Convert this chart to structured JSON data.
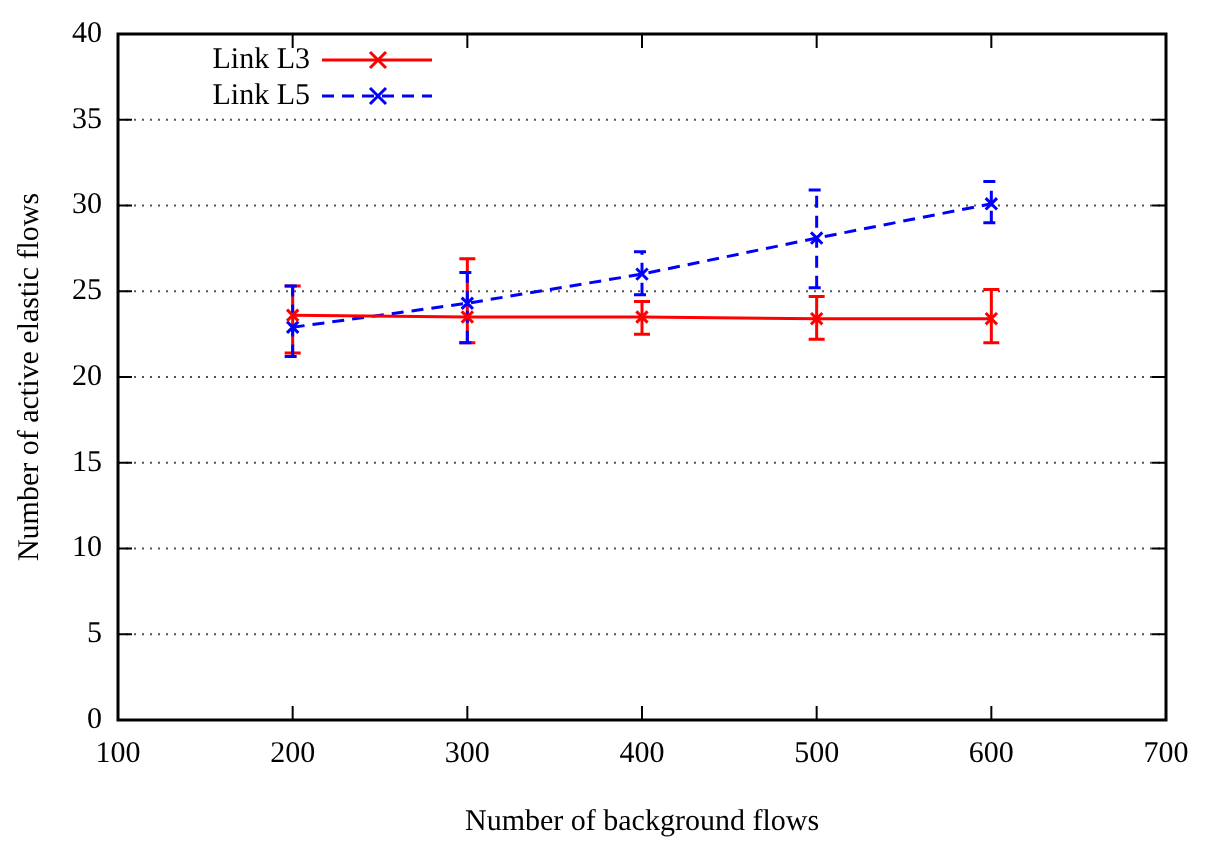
{
  "chart_data": {
    "type": "line",
    "xlabel": "Number of background flows",
    "ylabel": "Number of active elastic flows",
    "x": [
      200,
      300,
      400,
      500,
      600
    ],
    "series": [
      {
        "name": "Link L3",
        "color": "#ff0000",
        "line_style": "solid",
        "marker": "cross",
        "values": [
          23.6,
          23.5,
          23.5,
          23.4,
          23.4
        ],
        "errors": [
          [
            21.4,
            25.3
          ],
          [
            22.0,
            26.9
          ],
          [
            22.5,
            24.4
          ],
          [
            22.2,
            24.7
          ],
          [
            22.0,
            25.1
          ]
        ]
      },
      {
        "name": "Link L5",
        "color": "#0000ff",
        "line_style": "dashed",
        "marker": "cross",
        "values": [
          22.9,
          24.3,
          26.0,
          28.1,
          30.1
        ],
        "errors": [
          [
            21.2,
            25.3
          ],
          [
            22.0,
            26.1
          ],
          [
            24.8,
            27.3
          ],
          [
            25.2,
            30.9
          ],
          [
            29.0,
            31.4
          ]
        ]
      }
    ],
    "xlim": [
      100,
      700
    ],
    "xticks": [
      100,
      200,
      300,
      400,
      500,
      600,
      700
    ],
    "ylim": [
      0,
      40
    ],
    "yticks": [
      0,
      5,
      10,
      15,
      20,
      25,
      30,
      35,
      40
    ],
    "grid": "y",
    "legend": "top left"
  }
}
